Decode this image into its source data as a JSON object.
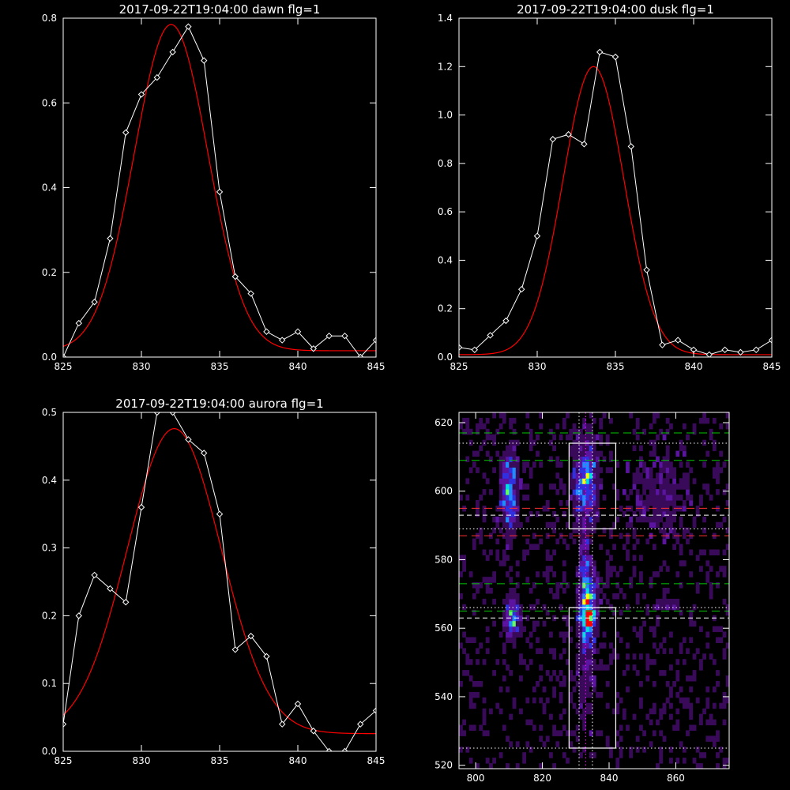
{
  "colors": {
    "background": "#000000",
    "axes": "#ffffff",
    "observed": "#ffffff",
    "fit": "#ff0000",
    "box": "#ffffff",
    "green_line": "#00cc00",
    "red_line": "#ff3030",
    "white_dash": "#ffffff",
    "dotted": "#ffffff",
    "magenta": "#ff00ff"
  },
  "chart_data": [
    {
      "type": "line",
      "title": "2017-09-22T19:04:00 dawn flg=1",
      "xlim": [
        825,
        845
      ],
      "ylim": [
        0,
        0.8
      ],
      "xticks": [
        "825",
        "830",
        "835",
        "840",
        "845"
      ],
      "yticks": [
        "0.0",
        "0.2",
        "0.4",
        "0.6",
        "0.8"
      ],
      "observed": {
        "marker": "diamond",
        "x": [
          825,
          826,
          827,
          828,
          829,
          830,
          831,
          832,
          833,
          834,
          835,
          836,
          837,
          838,
          839,
          840,
          841,
          842,
          843,
          844,
          845
        ],
        "y": [
          0.0,
          0.08,
          0.13,
          0.28,
          0.53,
          0.62,
          0.66,
          0.72,
          0.78,
          0.7,
          0.39,
          0.19,
          0.15,
          0.06,
          0.04,
          0.06,
          0.02,
          0.05,
          0.05,
          0.0,
          0.04
        ]
      },
      "fit": {
        "amplitude": 0.77,
        "center": 831.9,
        "sigma": 2.35,
        "offset": 0.015
      }
    },
    {
      "type": "line",
      "title": "2017-09-22T19:04:00 dusk flg=1",
      "xlim": [
        825,
        845
      ],
      "ylim": [
        0,
        1.4
      ],
      "xticks": [
        "825",
        "830",
        "835",
        "840",
        "845"
      ],
      "yticks": [
        "0.0",
        "0.2",
        "0.4",
        "0.6",
        "0.8",
        "1.0",
        "1.2",
        "1.4"
      ],
      "observed": {
        "marker": "diamond",
        "x": [
          825,
          826,
          827,
          828,
          829,
          830,
          831,
          832,
          833,
          834,
          835,
          836,
          837,
          838,
          839,
          840,
          841,
          842,
          843,
          844,
          845
        ],
        "y": [
          0.04,
          0.03,
          0.09,
          0.15,
          0.28,
          0.5,
          0.9,
          0.92,
          0.88,
          1.26,
          1.24,
          0.87,
          0.36,
          0.05,
          0.07,
          0.03,
          0.01,
          0.03,
          0.02,
          0.03,
          0.07
        ]
      },
      "fit": {
        "amplitude": 1.19,
        "center": 833.6,
        "sigma": 1.95,
        "offset": 0.01
      }
    },
    {
      "type": "line",
      "title": "2017-09-22T19:04:00 aurora flg=1",
      "xlim": [
        825,
        845
      ],
      "ylim": [
        0,
        0.5
      ],
      "xticks": [
        "825",
        "830",
        "835",
        "840",
        "845"
      ],
      "yticks": [
        "0.0",
        "0.1",
        "0.2",
        "0.3",
        "0.4",
        "0.5"
      ],
      "observed": {
        "marker": "diamond",
        "x": [
          825,
          826,
          827,
          828,
          829,
          830,
          831,
          832,
          833,
          834,
          835,
          836,
          837,
          838,
          839,
          840,
          841,
          842,
          843,
          844,
          845
        ],
        "y": [
          0.04,
          0.2,
          0.26,
          0.24,
          0.22,
          0.36,
          0.5,
          0.5,
          0.46,
          0.44,
          0.35,
          0.15,
          0.17,
          0.14,
          0.04,
          0.07,
          0.03,
          0.0,
          0.0,
          0.04,
          0.06
        ]
      },
      "fit": {
        "amplitude": 0.45,
        "center": 832.1,
        "sigma": 3.0,
        "offset": 0.026
      }
    },
    {
      "type": "heatmap",
      "title": "",
      "xlim": [
        795,
        876
      ],
      "ylim": [
        519,
        623
      ],
      "xticks": [
        "800",
        "820",
        "840",
        "860"
      ],
      "yticks": [
        "520",
        "540",
        "560",
        "580",
        "600",
        "620"
      ],
      "colormap": [
        "#000000",
        "#3a0a5a",
        "#5a14a0",
        "#3030e0",
        "#1e8cff",
        "#00e0e0",
        "#60ff60",
        "#ffff00",
        "#ff0000"
      ],
      "sources": [
        {
          "x": 810,
          "y": 600,
          "sx": 1.6,
          "sy": 7.5,
          "amp": 0.55
        },
        {
          "x": 811,
          "y": 563,
          "sx": 1.4,
          "sy": 4.0,
          "amp": 0.55
        },
        {
          "x": 833,
          "y": 603,
          "sx": 2.2,
          "sy": 8.0,
          "amp": 0.6
        },
        {
          "x": 833.5,
          "y": 566,
          "sx": 1.6,
          "sy": 6.5,
          "amp": 0.8
        },
        {
          "x": 834,
          "y": 562,
          "sx": 1.0,
          "sy": 1.3,
          "amp": 0.55
        },
        {
          "x": 832.5,
          "y": 580,
          "sx": 1.0,
          "sy": 6.0,
          "amp": 0.25
        },
        {
          "x": 857,
          "y": 567,
          "sx": 3.0,
          "sy": 1.0,
          "amp": 0.2
        },
        {
          "x": 833,
          "y": 545,
          "sx": 2.0,
          "sy": 12.0,
          "amp": 0.12
        },
        {
          "x": 855,
          "y": 600,
          "sx": 8.0,
          "sy": 10.0,
          "amp": 0.12
        }
      ],
      "boxes": [
        {
          "x0": 828,
          "x1": 842,
          "y0": 589,
          "y1": 614
        },
        {
          "x0": 828,
          "x1": 842,
          "y0": 525,
          "y1": 566
        }
      ],
      "hlines": [
        {
          "y": 617,
          "style": "green-dash"
        },
        {
          "y": 609,
          "style": "green-dash"
        },
        {
          "y": 595,
          "style": "red-dash"
        },
        {
          "y": 587,
          "style": "red-dash"
        },
        {
          "y": 573,
          "style": "green-dash"
        },
        {
          "y": 565,
          "style": "green-dash"
        },
        {
          "y": 593,
          "style": "white-dash"
        },
        {
          "y": 563,
          "style": "white-dash"
        },
        {
          "y": 614,
          "style": "dotted"
        },
        {
          "y": 589,
          "style": "dotted"
        },
        {
          "y": 566,
          "style": "dotted"
        },
        {
          "y": 525,
          "style": "dotted"
        }
      ],
      "vlines": [
        {
          "x": 831,
          "style": "dotted"
        },
        {
          "x": 833,
          "style": "magenta-dotted"
        },
        {
          "x": 835,
          "style": "dotted"
        }
      ]
    }
  ]
}
